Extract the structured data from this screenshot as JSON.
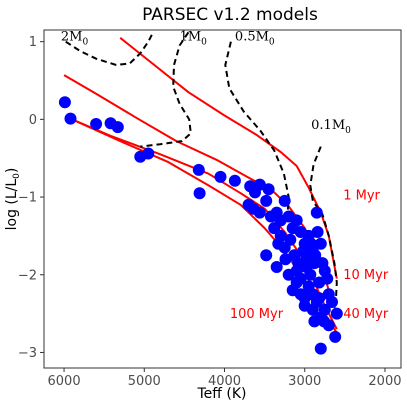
{
  "chart_data": {
    "type": "scatter",
    "title": "PARSEC v1.2 models",
    "xlabel": "Teff (K)",
    "ylabel": "log (L/L",
    "ylabel_sub": "0",
    "ylabel_close": ")",
    "xlim": [
      6250,
      1800
    ],
    "ylim": [
      -3.2,
      1.15
    ],
    "x_ticks": [
      6000,
      5000,
      4000,
      3000,
      2000
    ],
    "y_ticks": [
      1,
      0,
      -1,
      -2,
      -3
    ],
    "x_tick_labels": [
      "6000",
      "5000",
      "4000",
      "3000",
      "2000"
    ],
    "y_tick_labels": [
      "1",
      "0",
      "−1",
      "−2",
      "−3"
    ],
    "grid": false,
    "colors": {
      "points": "#0000ff",
      "isochrones": "#ff0000",
      "tracks": "#000000",
      "isochrone_labels": "#ff0000"
    },
    "points": [
      {
        "teff": 5990,
        "logL": 0.22
      },
      {
        "teff": 5920,
        "logL": 0.01
      },
      {
        "teff": 5600,
        "logL": -0.06
      },
      {
        "teff": 5420,
        "logL": -0.05
      },
      {
        "teff": 5330,
        "logL": -0.1
      },
      {
        "teff": 5050,
        "logL": -0.48
      },
      {
        "teff": 4950,
        "logL": -0.44
      },
      {
        "teff": 4320,
        "logL": -0.65
      },
      {
        "teff": 4310,
        "logL": -0.95
      },
      {
        "teff": 4050,
        "logL": -0.74
      },
      {
        "teff": 3870,
        "logL": -0.79
      },
      {
        "teff": 3680,
        "logL": -0.86
      },
      {
        "teff": 3620,
        "logL": -0.94
      },
      {
        "teff": 3560,
        "logL": -0.84
      },
      {
        "teff": 3450,
        "logL": -0.9
      },
      {
        "teff": 3700,
        "logL": -1.1
      },
      {
        "teff": 3640,
        "logL": -1.15
      },
      {
        "teff": 3560,
        "logL": -1.2
      },
      {
        "teff": 3480,
        "logL": -1.05
      },
      {
        "teff": 3420,
        "logL": -1.25
      },
      {
        "teff": 3350,
        "logL": -1.2
      },
      {
        "teff": 3300,
        "logL": -1.3
      },
      {
        "teff": 3250,
        "logL": -1.05
      },
      {
        "teff": 3200,
        "logL": -1.25
      },
      {
        "teff": 3150,
        "logL": -1.4
      },
      {
        "teff": 3100,
        "logL": -1.3
      },
      {
        "teff": 3050,
        "logL": -1.45
      },
      {
        "teff": 3000,
        "logL": -1.6
      },
      {
        "teff": 2950,
        "logL": -1.5
      },
      {
        "teff": 2900,
        "logL": -1.7
      },
      {
        "teff": 2850,
        "logL": -1.2
      },
      {
        "teff": 2800,
        "logL": -1.6
      },
      {
        "teff": 3300,
        "logL": -1.5
      },
      {
        "teff": 3250,
        "logL": -1.65
      },
      {
        "teff": 3180,
        "logL": -1.55
      },
      {
        "teff": 3130,
        "logL": -1.75
      },
      {
        "teff": 3080,
        "logL": -1.85
      },
      {
        "teff": 3020,
        "logL": -1.7
      },
      {
        "teff": 2980,
        "logL": -1.9
      },
      {
        "teff": 2930,
        "logL": -2.0
      },
      {
        "teff": 2880,
        "logL": -1.85
      },
      {
        "teff": 2820,
        "logL": -2.1
      },
      {
        "teff": 2750,
        "logL": -1.95
      },
      {
        "teff": 2700,
        "logL": -2.25
      },
      {
        "teff": 3480,
        "logL": -1.75
      },
      {
        "teff": 3350,
        "logL": -1.9
      },
      {
        "teff": 3200,
        "logL": -2.0
      },
      {
        "teff": 3100,
        "logL": -2.1
      },
      {
        "teff": 3050,
        "logL": -2.25
      },
      {
        "teff": 3000,
        "logL": -2.4
      },
      {
        "teff": 2950,
        "logL": -2.25
      },
      {
        "teff": 2900,
        "logL": -2.45
      },
      {
        "teff": 2850,
        "logL": -2.35
      },
      {
        "teff": 2800,
        "logL": -2.55
      },
      {
        "teff": 2750,
        "logL": -2.45
      },
      {
        "teff": 2700,
        "logL": -2.65
      },
      {
        "teff": 2880,
        "logL": -2.6
      },
      {
        "teff": 3000,
        "logL": -2.3
      },
      {
        "teff": 2950,
        "logL": -2.15
      },
      {
        "teff": 2600,
        "logL": -2.5
      },
      {
        "teff": 2620,
        "logL": -2.8
      },
      {
        "teff": 2800,
        "logL": -2.95
      },
      {
        "teff": 3100,
        "logL": -1.95
      },
      {
        "teff": 3150,
        "logL": -2.2
      },
      {
        "teff": 3050,
        "logL": -2.05
      },
      {
        "teff": 2980,
        "logL": -1.8
      },
      {
        "teff": 2920,
        "logL": -1.6
      },
      {
        "teff": 2870,
        "logL": -1.75
      },
      {
        "teff": 2780,
        "logL": -1.85
      },
      {
        "teff": 2720,
        "logL": -2.05
      },
      {
        "teff": 2660,
        "logL": -2.35
      },
      {
        "teff": 3240,
        "logL": -1.8
      },
      {
        "teff": 3380,
        "logL": -1.4
      },
      {
        "teff": 3330,
        "logL": -1.6
      },
      {
        "teff": 2900,
        "logL": -2.25
      },
      {
        "teff": 2820,
        "logL": -2.3
      },
      {
        "teff": 2760,
        "logL": -2.6
      },
      {
        "teff": 2840,
        "logL": -1.45
      }
    ],
    "isochrones": [
      {
        "label": "1 Myr",
        "points": [
          [
            5300,
            1.05
          ],
          [
            4900,
            0.72
          ],
          [
            4450,
            0.35
          ],
          [
            4000,
            0.05
          ],
          [
            3600,
            -0.2
          ],
          [
            3300,
            -0.42
          ],
          [
            3100,
            -0.6
          ],
          [
            2950,
            -0.88
          ],
          [
            2800,
            -1.2
          ],
          [
            2700,
            -1.5
          ],
          [
            2600,
            -2.05
          ]
        ]
      },
      {
        "label": "10 Myr",
        "points": [
          [
            6000,
            0.57
          ],
          [
            5600,
            0.33
          ],
          [
            5100,
            0.02
          ],
          [
            4600,
            -0.28
          ],
          [
            4100,
            -0.52
          ],
          [
            3700,
            -0.75
          ],
          [
            3400,
            -0.92
          ],
          [
            3200,
            -1.12
          ],
          [
            3000,
            -1.4
          ],
          [
            2850,
            -1.7
          ],
          [
            2700,
            -2.2
          ],
          [
            2600,
            -2.5
          ]
        ]
      },
      {
        "label": "40 Myr",
        "points": [
          [
            5900,
            0.0
          ],
          [
            5400,
            -0.22
          ],
          [
            4800,
            -0.45
          ],
          [
            4200,
            -0.7
          ],
          [
            3800,
            -0.95
          ],
          [
            3500,
            -1.15
          ],
          [
            3250,
            -1.45
          ],
          [
            3050,
            -1.75
          ],
          [
            2900,
            -2.05
          ],
          [
            2750,
            -2.4
          ],
          [
            2600,
            -2.7
          ]
        ]
      },
      {
        "label": "100 Myr",
        "points": [
          [
            5900,
            0.0
          ],
          [
            5300,
            -0.28
          ],
          [
            4700,
            -0.55
          ],
          [
            4200,
            -0.85
          ],
          [
            3800,
            -1.1
          ],
          [
            3500,
            -1.4
          ],
          [
            3250,
            -1.7
          ],
          [
            3050,
            -2.0
          ],
          [
            2900,
            -2.25
          ],
          [
            2750,
            -2.5
          ],
          [
            2600,
            -2.75
          ]
        ]
      }
    ],
    "isochrone_labels": [
      {
        "text": "1 Myr",
        "teff": 2520,
        "logL": -0.97,
        "anchor": "start"
      },
      {
        "text": "10 Myr",
        "teff": 2520,
        "logL": -1.99,
        "anchor": "start"
      },
      {
        "text": "40 Myr",
        "teff": 2520,
        "logL": -2.49,
        "anchor": "start"
      },
      {
        "text": "100 Myr",
        "teff": 3270,
        "logL": -2.49,
        "anchor": "end"
      }
    ],
    "tracks": [
      {
        "label": "2M",
        "points": [
          [
            5980,
            1.0
          ],
          [
            5800,
            0.88
          ],
          [
            5600,
            0.78
          ],
          [
            5350,
            0.7
          ],
          [
            5180,
            0.72
          ],
          [
            5050,
            0.85
          ],
          [
            4950,
            1.0
          ],
          [
            4900,
            1.1
          ]
        ]
      },
      {
        "label": "1M",
        "points": [
          [
            4450,
            1.12
          ],
          [
            4560,
            0.95
          ],
          [
            4630,
            0.7
          ],
          [
            4640,
            0.42
          ],
          [
            4560,
            0.2
          ],
          [
            4440,
            0.0
          ],
          [
            4420,
            -0.18
          ],
          [
            4530,
            -0.28
          ],
          [
            4800,
            -0.32
          ],
          [
            5050,
            -0.35
          ]
        ]
      },
      {
        "label": "0.5M",
        "points": [
          [
            3920,
            1.0
          ],
          [
            3990,
            0.7
          ],
          [
            3940,
            0.4
          ],
          [
            3760,
            0.1
          ],
          [
            3550,
            -0.15
          ],
          [
            3380,
            -0.4
          ],
          [
            3260,
            -0.7
          ],
          [
            3200,
            -1.0
          ],
          [
            3220,
            -1.3
          ],
          [
            3320,
            -1.38
          ]
        ]
      },
      {
        "label": "0.1M",
        "points": [
          [
            2800,
            -0.35
          ],
          [
            2890,
            -0.58
          ],
          [
            2930,
            -0.85
          ],
          [
            2900,
            -1.05
          ],
          [
            2780,
            -1.22
          ],
          [
            2700,
            -1.5
          ],
          [
            2630,
            -1.85
          ],
          [
            2600,
            -2.1
          ],
          [
            2610,
            -2.3
          ]
        ]
      }
    ],
    "track_labels": [
      {
        "text": "2M",
        "sub": "0",
        "teff": 6040,
        "logL": 1.08
      },
      {
        "text": "1M",
        "sub": "0",
        "teff": 4560,
        "logL": 1.08
      },
      {
        "text": "0.5M",
        "sub": "0",
        "teff": 3870,
        "logL": 1.08
      },
      {
        "text": "0.1M",
        "sub": "0",
        "teff": 2920,
        "logL": -0.06
      }
    ]
  }
}
